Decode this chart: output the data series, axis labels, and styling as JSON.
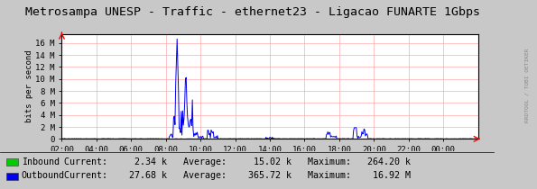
{
  "title": "Metrosampa UNESP - Traffic - ethernet23 - Ligacao FUNARTE 1Gbps",
  "ylabel": "bits per second",
  "background_color": "#c8c8c8",
  "plot_bg_color": "#ffffff",
  "grid_color": "#ffaaaa",
  "title_color": "#000000",
  "title_fontsize": 9.5,
  "xtick_labels": [
    "02:00",
    "04:00",
    "06:00",
    "08:00",
    "10:00",
    "12:00",
    "14:00",
    "16:00",
    "18:00",
    "20:00",
    "22:00",
    "00:00"
  ],
  "ytick_labels": [
    "0",
    "2 M",
    "4 M",
    "6 M",
    "8 M",
    "10 M",
    "12 M",
    "14 M",
    "16 M"
  ],
  "ytick_values": [
    0,
    2000000,
    4000000,
    6000000,
    8000000,
    10000000,
    12000000,
    14000000,
    16000000
  ],
  "ymax": 17500000,
  "inbound_color": "#00cc00",
  "outbound_color": "#0000ee",
  "watermark": "RRDTOOL / TOBI OETIKER",
  "legend": [
    {
      "label": "Inbound",
      "color": "#00cc00",
      "current": "2.34 k",
      "average": "15.02 k",
      "maximum": "264.20 k"
    },
    {
      "label": "Outbound",
      "color": "#0000ee",
      "current": "27.68 k",
      "average": "365.72 k",
      "maximum": "16.92 M"
    }
  ]
}
